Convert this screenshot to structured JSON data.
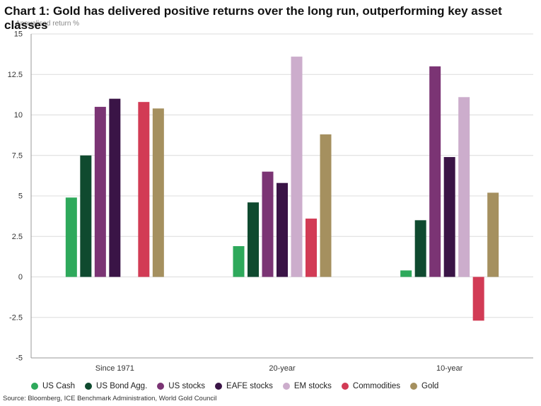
{
  "chart_data": {
    "type": "bar",
    "title": "Chart 1: Gold has delivered positive returns over the long run, outperforming key asset classes",
    "ylabel": "Annualised return %",
    "xlabel": "",
    "ylim": [
      -5,
      15
    ],
    "yticks": [
      "15",
      "12.5",
      "10",
      "7.5",
      "5",
      "2.5",
      "0",
      "-2.5",
      "-5"
    ],
    "ytick_values": [
      15,
      12.5,
      10,
      7.5,
      5,
      2.5,
      0,
      -2.5,
      -5
    ],
    "grid": true,
    "legend_position": "bottom",
    "categories": [
      "Since 1971",
      "20-year",
      "10-year"
    ],
    "series": [
      {
        "name": "US Cash",
        "color": "#2ea95b",
        "values": [
          4.9,
          1.9,
          0.4
        ]
      },
      {
        "name": "US Bond Agg.",
        "color": "#0f4a2f",
        "values": [
          7.5,
          4.6,
          3.5
        ]
      },
      {
        "name": "US stocks",
        "color": "#7b3474",
        "values": [
          10.5,
          6.5,
          13.0
        ]
      },
      {
        "name": "EAFE stocks",
        "color": "#3a1446",
        "values": [
          11.0,
          5.8,
          7.4
        ]
      },
      {
        "name": "EM stocks",
        "color": "#ccadcc",
        "values": [
          null,
          13.6,
          11.1
        ]
      },
      {
        "name": "Commodities",
        "color": "#d23b55",
        "values": [
          10.8,
          3.6,
          -2.7
        ]
      },
      {
        "name": "Gold",
        "color": "#a5905f",
        "values": [
          10.4,
          8.8,
          5.2
        ]
      }
    ]
  },
  "header": {
    "title": "Chart 1: Gold has delivered positive returns over the long run, outperforming key asset classes",
    "y_unit": "Annualised return %"
  },
  "footer": {
    "source": "Source: Bloomberg, ICE Benchmark Administration, World Gold Council"
  }
}
